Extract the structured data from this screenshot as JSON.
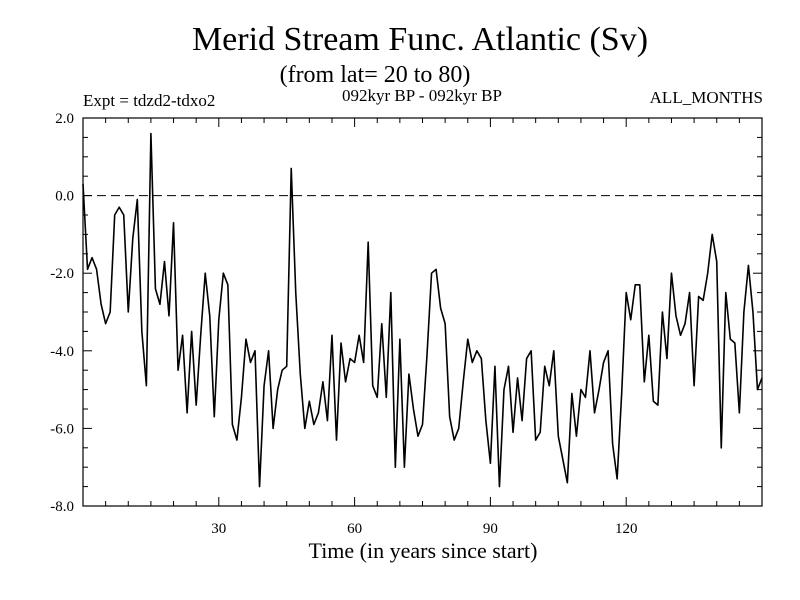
{
  "chart_data": {
    "type": "line",
    "title": "Merid Stream Func. Atlantic (Sv)",
    "subtitle": "(from lat= 20 to 80)",
    "header_left": "Expt = tdzd2-tdxo2",
    "header_center": "092kyr BP - 092kyr BP",
    "header_right": "ALL_MONTHS",
    "xlabel": "Time (in years since start)",
    "ylabel": "",
    "xlim": [
      0,
      150
    ],
    "ylim": [
      -8.0,
      2.0
    ],
    "x_ticks": [
      30,
      60,
      90,
      120
    ],
    "x_tick_labels": [
      "30",
      "60",
      "90",
      "120"
    ],
    "y_ticks": [
      2.0,
      0.0,
      -2.0,
      -4.0,
      -6.0,
      -8.0
    ],
    "y_tick_labels": [
      "2.0",
      "0.0",
      "-2.0",
      "-4.0",
      "-6.0",
      "-8.0"
    ],
    "reference_line": 0.0,
    "series": [
      {
        "name": "Merid Stream Func. Atlantic",
        "x": [
          0,
          1,
          2,
          3,
          4,
          5,
          6,
          7,
          8,
          9,
          10,
          11,
          12,
          13,
          14,
          15,
          16,
          17,
          18,
          19,
          20,
          21,
          22,
          23,
          24,
          25,
          26,
          27,
          28,
          29,
          30,
          31,
          32,
          33,
          34,
          35,
          36,
          37,
          38,
          39,
          40,
          41,
          42,
          43,
          44,
          45,
          46,
          47,
          48,
          49,
          50,
          51,
          52,
          53,
          54,
          55,
          56,
          57,
          58,
          59,
          60,
          61,
          62,
          63,
          64,
          65,
          66,
          67,
          68,
          69,
          70,
          71,
          72,
          73,
          74,
          75,
          76,
          77,
          78,
          79,
          80,
          81,
          82,
          83,
          84,
          85,
          86,
          87,
          88,
          89,
          90,
          91,
          92,
          93,
          94,
          95,
          96,
          97,
          98,
          99,
          100,
          101,
          102,
          103,
          104,
          105,
          106,
          107,
          108,
          109,
          110,
          111,
          112,
          113,
          114,
          115,
          116,
          117,
          118,
          119,
          120,
          121,
          122,
          123,
          124,
          125,
          126,
          127,
          128,
          129,
          130,
          131,
          132,
          133,
          134,
          135,
          136,
          137,
          138,
          139,
          140,
          141,
          142,
          143,
          144,
          145,
          146,
          147,
          148,
          149,
          150
        ],
        "values": [
          0.3,
          -1.9,
          -1.6,
          -1.9,
          -2.8,
          -3.3,
          -3.0,
          -0.5,
          -0.3,
          -0.5,
          -3.0,
          -1.1,
          -0.1,
          -3.5,
          -4.9,
          1.6,
          -2.4,
          -2.8,
          -1.7,
          -3.1,
          -0.7,
          -4.5,
          -3.6,
          -5.6,
          -3.5,
          -5.4,
          -3.6,
          -2.0,
          -3.1,
          -5.7,
          -3.2,
          -2.0,
          -2.3,
          -5.9,
          -6.3,
          -5.2,
          -3.7,
          -4.3,
          -4.0,
          -7.5,
          -4.9,
          -4.0,
          -6.0,
          -5.0,
          -4.5,
          -4.4,
          0.7,
          -2.5,
          -4.6,
          -6.0,
          -5.3,
          -5.9,
          -5.6,
          -4.8,
          -5.8,
          -3.6,
          -6.3,
          -3.8,
          -4.8,
          -4.2,
          -4.3,
          -3.6,
          -4.3,
          -1.2,
          -4.9,
          -5.2,
          -3.3,
          -5.2,
          -2.5,
          -7.0,
          -3.7,
          -7.0,
          -4.6,
          -5.5,
          -6.2,
          -5.9,
          -4.1,
          -2.0,
          -1.9,
          -2.9,
          -3.3,
          -5.7,
          -6.3,
          -6.0,
          -4.8,
          -3.7,
          -4.3,
          -4.0,
          -4.2,
          -5.8,
          -6.9,
          -4.4,
          -7.5,
          -5.0,
          -4.4,
          -6.1,
          -4.7,
          -5.8,
          -4.2,
          -4.0,
          -6.3,
          -6.1,
          -4.4,
          -4.9,
          -4.0,
          -6.2,
          -6.8,
          -7.4,
          -5.1,
          -6.2,
          -5.0,
          -5.2,
          -4.0,
          -5.6,
          -5.0,
          -4.3,
          -4.0,
          -6.4,
          -7.3,
          -5.1,
          -2.5,
          -3.2,
          -2.3,
          -2.3,
          -4.8,
          -3.6,
          -5.3,
          -5.4,
          -3.0,
          -4.2,
          -2.0,
          -3.1,
          -3.6,
          -3.3,
          -2.5,
          -4.9,
          -2.6,
          -2.7,
          -2.0,
          -1.0,
          -1.7,
          -6.5,
          -2.5,
          -3.7,
          -3.8,
          -5.6,
          -3.0,
          -1.8,
          -3.0,
          -5.0,
          -4.7
        ]
      }
    ]
  }
}
